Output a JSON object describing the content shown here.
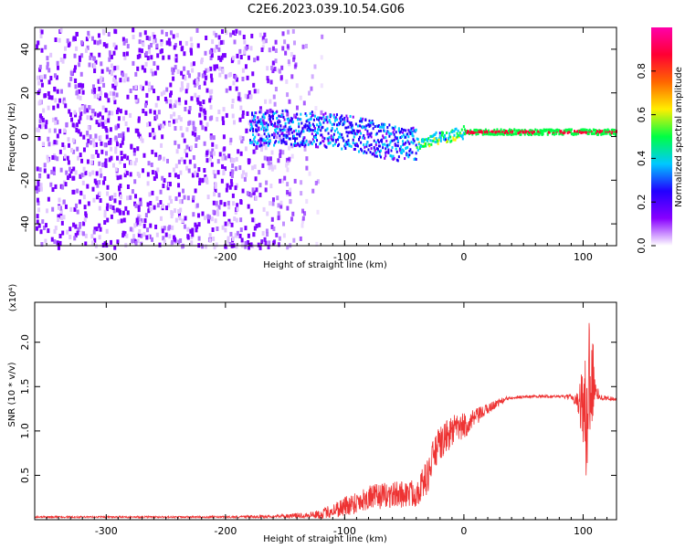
{
  "title": "C2E6.2023.039.10.54.G06",
  "chart_data": [
    {
      "type": "heatmap",
      "xlabel": "Height of straight line (km)",
      "ylabel": "Frequency (Hz)",
      "xlim": [
        -360,
        128
      ],
      "ylim": [
        -50,
        50
      ],
      "xticks": [
        -300,
        -200,
        -100,
        0,
        100
      ],
      "yticks": [
        -40,
        -20,
        0,
        20,
        40
      ],
      "colorbar": {
        "label": "Normalized spectral amplitude",
        "range": [
          0,
          1
        ],
        "ticks": [
          "0.0",
          "0.2",
          "0.4",
          "0.6",
          "0.8"
        ],
        "colormap": [
          "#ffffff",
          "#8800ff",
          "#2200ff",
          "#00c8ff",
          "#00ff44",
          "#ffee00",
          "#ff6600",
          "#ff0033",
          "#ff00aa"
        ]
      },
      "features": {
        "noise_region_x": [
          -360,
          -130
        ],
        "signal_track": {
          "x": [
            -180,
            -150,
            -120,
            -90,
            -60,
            -45,
            -30,
            -15,
            0,
            20,
            60,
            100,
            128
          ],
          "freq": [
            3,
            4,
            3,
            1,
            -3,
            -4,
            -2,
            0,
            2,
            2,
            2,
            2,
            2
          ]
        }
      }
    },
    {
      "type": "line",
      "xlabel": "Height of straight line (km)",
      "ylabel": "SNR (10 * v/v)",
      "scale_note": "(x10⁴)",
      "xlim": [
        -360,
        128
      ],
      "ylim": [
        0,
        2.45
      ],
      "xticks": [
        -300,
        -200,
        -100,
        0,
        100
      ],
      "yticks": [
        "0.5",
        "1.0",
        "1.5",
        "2.0"
      ],
      "line_color": "#ee3333",
      "series": [
        {
          "x": [
            -360,
            -300,
            -200,
            -150,
            -120,
            -100,
            -80,
            -60,
            -40,
            -30,
            -25,
            -20,
            -10,
            0,
            10,
            20,
            30,
            40,
            60,
            80,
            90,
            95,
            100,
            103,
            105,
            108,
            110,
            115,
            128
          ],
          "y": [
            0.03,
            0.03,
            0.03,
            0.04,
            0.06,
            0.15,
            0.25,
            0.28,
            0.3,
            0.5,
            0.75,
            0.85,
            1.0,
            1.05,
            1.15,
            1.25,
            1.33,
            1.38,
            1.39,
            1.39,
            1.38,
            1.35,
            1.32,
            1.0,
            1.7,
            1.6,
            1.45,
            1.38,
            1.36
          ],
          "noise": [
            0.01,
            0.01,
            0.01,
            0.02,
            0.05,
            0.12,
            0.14,
            0.15,
            0.16,
            0.2,
            0.2,
            0.2,
            0.18,
            0.15,
            0.1,
            0.06,
            0.04,
            0.02,
            0.015,
            0.015,
            0.03,
            0.08,
            0.5,
            0.9,
            0.9,
            0.6,
            0.1,
            0.03,
            0.02
          ]
        }
      ]
    }
  ]
}
